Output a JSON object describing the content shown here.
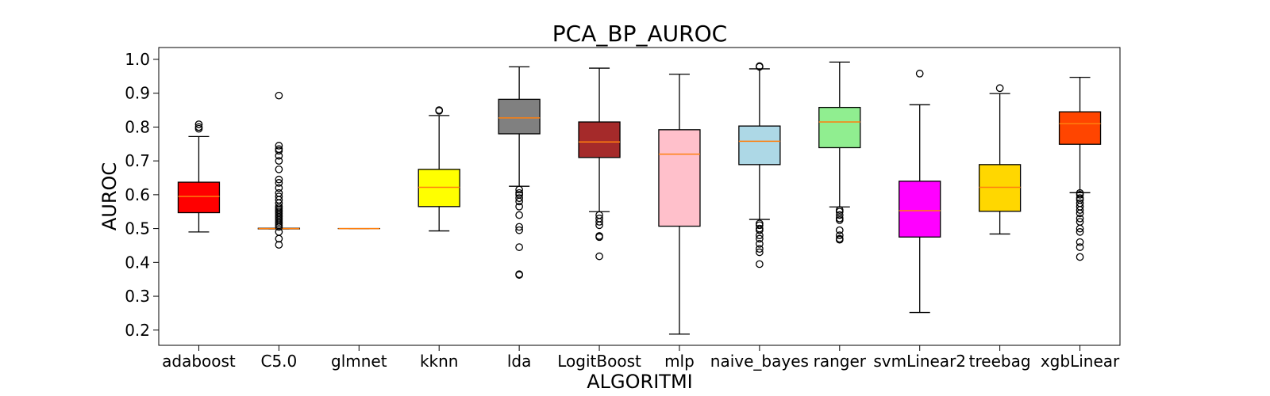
{
  "chart_data": {
    "type": "box",
    "title": "PCA_BP_AUROC",
    "xlabel": "ALGORITMI",
    "ylabel": "AUROC",
    "ylim": [
      0.155,
      1.035
    ],
    "yticks": [
      "0.2",
      "0.3",
      "0.4",
      "0.5",
      "0.6",
      "0.7",
      "0.8",
      "0.9",
      "1.0"
    ],
    "grid": false,
    "median_color": "#ff7f0e",
    "categories": [
      "adaboost",
      "C5.0",
      "glmnet",
      "kknn",
      "lda",
      "LogitBoost",
      "mlp",
      "naive_bayes",
      "ranger",
      "svmLinear2",
      "treebag",
      "xgbLinear"
    ],
    "series": [
      {
        "category": "adaboost",
        "color": "#ff0000",
        "whisker_low": 0.49,
        "q1": 0.547,
        "median": 0.595,
        "q3": 0.637,
        "whisker_high": 0.772,
        "outliers": [
          0.795,
          0.8,
          0.808
        ]
      },
      {
        "category": "C5.0",
        "color": "#ffffff",
        "whisker_low": 0.499,
        "q1": 0.499,
        "median": 0.5,
        "q3": 0.501,
        "whisker_high": 0.501,
        "outliers": [
          0.452,
          0.47,
          0.49,
          0.505,
          0.51,
          0.515,
          0.52,
          0.525,
          0.53,
          0.535,
          0.54,
          0.545,
          0.55,
          0.555,
          0.56,
          0.565,
          0.575,
          0.585,
          0.595,
          0.605,
          0.62,
          0.635,
          0.645,
          0.675,
          0.7,
          0.715,
          0.73,
          0.735,
          0.745,
          0.893
        ]
      },
      {
        "category": "glmnet",
        "color": "#ffffff",
        "whisker_low": 0.5,
        "q1": 0.5,
        "median": 0.5,
        "q3": 0.5,
        "whisker_high": 0.5,
        "outliers": []
      },
      {
        "category": "kknn",
        "color": "#ffff00",
        "whisker_low": 0.493,
        "q1": 0.565,
        "median": 0.622,
        "q3": 0.675,
        "whisker_high": 0.834,
        "outliers": [
          0.848,
          0.85
        ]
      },
      {
        "category": "lda",
        "color": "#808080",
        "whisker_low": 0.625,
        "q1": 0.78,
        "median": 0.827,
        "q3": 0.882,
        "whisker_high": 0.978,
        "outliers": [
          0.363,
          0.365,
          0.445,
          0.495,
          0.505,
          0.54,
          0.565,
          0.58,
          0.59,
          0.6,
          0.605,
          0.615
        ]
      },
      {
        "category": "LogitBoost",
        "color": "#a52a2a",
        "whisker_low": 0.55,
        "q1": 0.71,
        "median": 0.756,
        "q3": 0.815,
        "whisker_high": 0.974,
        "outliers": [
          0.418,
          0.475,
          0.478,
          0.51,
          0.52,
          0.53,
          0.54
        ]
      },
      {
        "category": "mlp",
        "color": "#ffc0cb",
        "whisker_low": 0.188,
        "q1": 0.507,
        "median": 0.72,
        "q3": 0.792,
        "whisker_high": 0.956,
        "outliers": []
      },
      {
        "category": "naive_bayes",
        "color": "#add8e6",
        "whisker_low": 0.527,
        "q1": 0.689,
        "median": 0.758,
        "q3": 0.803,
        "whisker_high": 0.972,
        "outliers": [
          0.395,
          0.43,
          0.44,
          0.455,
          0.47,
          0.48,
          0.495,
          0.5,
          0.51,
          0.515,
          0.978,
          0.98
        ]
      },
      {
        "category": "ranger",
        "color": "#90ee90",
        "whisker_low": 0.564,
        "q1": 0.739,
        "median": 0.815,
        "q3": 0.858,
        "whisker_high": 0.992,
        "outliers": [
          0.467,
          0.47,
          0.48,
          0.495,
          0.525,
          0.53,
          0.54,
          0.55,
          0.555
        ]
      },
      {
        "category": "svmLinear2",
        "color": "#ff00ff",
        "whisker_low": 0.252,
        "q1": 0.475,
        "median": 0.553,
        "q3": 0.64,
        "whisker_high": 0.866,
        "outliers": [
          0.958
        ]
      },
      {
        "category": "treebag",
        "color": "#ffd700",
        "whisker_low": 0.484,
        "q1": 0.551,
        "median": 0.622,
        "q3": 0.689,
        "whisker_high": 0.899,
        "outliers": [
          0.915
        ]
      },
      {
        "category": "xgbLinear",
        "color": "#ff4500",
        "whisker_low": 0.606,
        "q1": 0.749,
        "median": 0.81,
        "q3": 0.845,
        "whisker_high": 0.947,
        "outliers": [
          0.416,
          0.445,
          0.46,
          0.49,
          0.5,
          0.52,
          0.53,
          0.545,
          0.555,
          0.565,
          0.575,
          0.585,
          0.59,
          0.6,
          0.605
        ]
      }
    ]
  }
}
